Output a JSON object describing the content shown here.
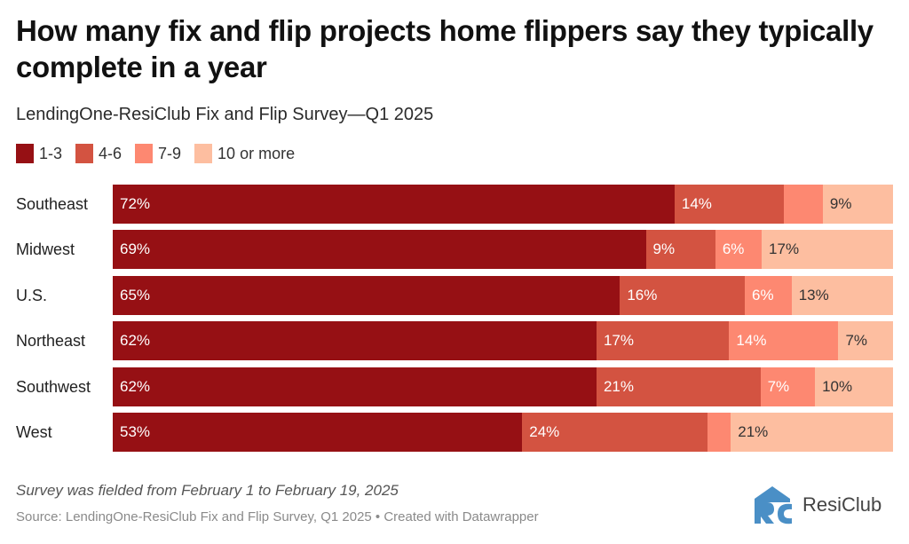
{
  "chart_data": {
    "type": "bar",
    "orientation": "horizontal",
    "stacked": true,
    "title": "How many fix and flip projects home flippers say they typically complete in a year",
    "subtitle": "LendingOne-ResiClub Fix and Flip Survey—Q1 2025",
    "xlabel": "",
    "ylabel": "",
    "xlim": [
      0,
      100
    ],
    "grid": false,
    "legend_position": "top-left",
    "categories": [
      "Southeast",
      "Midwest",
      "U.S.",
      "Northeast",
      "Southwest",
      "West"
    ],
    "series": [
      {
        "name": "1-3",
        "color": "#961014",
        "label_color": "#ffffff",
        "values": [
          72,
          69,
          65,
          62,
          62,
          53
        ],
        "labels": [
          "72%",
          "69%",
          "65%",
          "62%",
          "62%",
          "53%"
        ]
      },
      {
        "name": "4-6",
        "color": "#d35341",
        "label_color": "#ffffff",
        "values": [
          14,
          9,
          16,
          17,
          21,
          24
        ],
        "labels": [
          "14%",
          "9%",
          "16%",
          "17%",
          "21%",
          "24%"
        ]
      },
      {
        "name": "7-9",
        "color": "#fd8871",
        "label_color": "#ffffff",
        "values": [
          5,
          6,
          6,
          14,
          7,
          3
        ],
        "labels": [
          "",
          "6%",
          "6%",
          "14%",
          "7%",
          ""
        ]
      },
      {
        "name": "10 or more",
        "color": "#fdbea0",
        "label_color": "#333333",
        "values": [
          9,
          17,
          13,
          7,
          10,
          21
        ],
        "labels": [
          "9%",
          "17%",
          "13%",
          "7%",
          "10%",
          "21%"
        ]
      }
    ]
  },
  "footer": {
    "note": "Survey was fielded from February 1 to February 19, 2025",
    "source": "Source: LendingOne-ResiClub Fix and Flip Survey, Q1 2025 • Created with Datawrapper",
    "logo_text": "ResiClub",
    "logo_color": "#4a8fc6"
  }
}
